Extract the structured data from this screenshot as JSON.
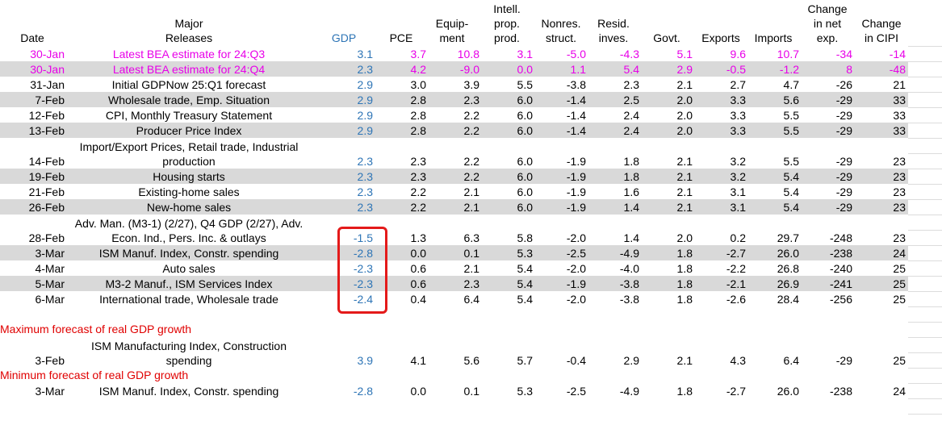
{
  "headers": [
    "Date",
    "Major Releases",
    "GDP",
    "PCE",
    "Equip-\nment",
    "Intell.\nprop.\nprod.",
    "Nonres.\nstruct.",
    "Resid.\ninves.",
    "Govt.",
    "Exports",
    "Imports",
    "Change\nin net\nexp.",
    "Change\nin CIPI"
  ],
  "rows": [
    {
      "date": "30-Jan",
      "release": "Latest BEA estimate for 24:Q3",
      "vals": [
        "3.1",
        "3.7",
        "10.8",
        "3.1",
        "-5.0",
        "-4.3",
        "5.1",
        "9.6",
        "10.7",
        "-34",
        "-14"
      ],
      "style": "pink",
      "shade": false
    },
    {
      "date": "30-Jan",
      "release": "Latest BEA estimate for 24:Q4",
      "vals": [
        "2.3",
        "4.2",
        "-9.0",
        "0.0",
        "1.1",
        "5.4",
        "2.9",
        "-0.5",
        "-1.2",
        "8",
        "-48"
      ],
      "style": "pink",
      "shade": true
    },
    {
      "date": "31-Jan",
      "release": "Initial GDPNow 25:Q1 forecast",
      "vals": [
        "2.9",
        "3.0",
        "3.9",
        "5.5",
        "-3.8",
        "2.3",
        "2.1",
        "2.7",
        "4.7",
        "-26",
        "21"
      ],
      "style": "",
      "shade": false
    },
    {
      "date": "7-Feb",
      "release": "Wholesale trade, Emp. Situation",
      "vals": [
        "2.9",
        "2.8",
        "2.3",
        "6.0",
        "-1.4",
        "2.5",
        "2.0",
        "3.3",
        "5.6",
        "-29",
        "33"
      ],
      "style": "",
      "shade": true
    },
    {
      "date": "12-Feb",
      "release": "CPI, Monthly Treasury Statement",
      "vals": [
        "2.9",
        "2.8",
        "2.2",
        "6.0",
        "-1.4",
        "2.4",
        "2.0",
        "3.3",
        "5.5",
        "-29",
        "33"
      ],
      "style": "",
      "shade": false
    },
    {
      "date": "13-Feb",
      "release": "Producer Price Index",
      "vals": [
        "2.9",
        "2.8",
        "2.2",
        "6.0",
        "-1.4",
        "2.4",
        "2.0",
        "3.3",
        "5.5",
        "-29",
        "33"
      ],
      "style": "",
      "shade": true
    },
    {
      "date": "14-Feb",
      "release": "Import/Export Prices, Retail trade, Industrial production",
      "vals": [
        "2.3",
        "2.3",
        "2.2",
        "6.0",
        "-1.9",
        "1.8",
        "2.1",
        "3.2",
        "5.5",
        "-29",
        "23"
      ],
      "style": "",
      "shade": false,
      "tall": true
    },
    {
      "date": "19-Feb",
      "release": "Housing starts",
      "vals": [
        "2.3",
        "2.3",
        "2.2",
        "6.0",
        "-1.9",
        "1.8",
        "2.1",
        "3.2",
        "5.4",
        "-29",
        "23"
      ],
      "style": "",
      "shade": true
    },
    {
      "date": "21-Feb",
      "release": "Existing-home sales",
      "vals": [
        "2.3",
        "2.2",
        "2.1",
        "6.0",
        "-1.9",
        "1.6",
        "2.1",
        "3.1",
        "5.4",
        "-29",
        "23"
      ],
      "style": "",
      "shade": false
    },
    {
      "date": "26-Feb",
      "release": "New-home sales",
      "vals": [
        "2.3",
        "2.2",
        "2.1",
        "6.0",
        "-1.9",
        "1.4",
        "2.1",
        "3.1",
        "5.4",
        "-29",
        "23"
      ],
      "style": "",
      "shade": true
    },
    {
      "date": "28-Feb",
      "release": "Adv. Man. (M3-1) (2/27), Q4 GDP (2/27), Adv. Econ. Ind., Pers. Inc. & outlays",
      "vals": [
        "-1.5",
        "1.3",
        "6.3",
        "5.8",
        "-2.0",
        "1.4",
        "2.0",
        "0.2",
        "29.7",
        "-248",
        "23"
      ],
      "style": "",
      "shade": false,
      "tall": true
    },
    {
      "date": "3-Mar",
      "release": "ISM Manuf. Index, Constr. spending",
      "vals": [
        "-2.8",
        "0.0",
        "0.1",
        "5.3",
        "-2.5",
        "-4.9",
        "1.8",
        "-2.7",
        "26.0",
        "-238",
        "24"
      ],
      "style": "",
      "shade": true
    },
    {
      "date": "4-Mar",
      "release": "Auto sales",
      "vals": [
        "-2.3",
        "0.6",
        "2.1",
        "5.4",
        "-2.0",
        "-4.0",
        "1.8",
        "-2.2",
        "26.8",
        "-240",
        "25"
      ],
      "style": "",
      "shade": false
    },
    {
      "date": "5-Mar",
      "release": "M3-2 Manuf., ISM Services Index",
      "vals": [
        "-2.3",
        "0.6",
        "2.3",
        "5.4",
        "-1.9",
        "-3.8",
        "1.8",
        "-2.1",
        "26.9",
        "-241",
        "25"
      ],
      "style": "",
      "shade": true
    },
    {
      "date": "6-Mar",
      "release": "International trade, Wholesale trade",
      "vals": [
        "-2.4",
        "0.4",
        "6.4",
        "5.4",
        "-2.0",
        "-3.8",
        "1.8",
        "-2.6",
        "28.4",
        "-256",
        "25"
      ],
      "style": "",
      "shade": false
    }
  ],
  "max_label": "Maximum forecast of real GDP growth",
  "max_row": {
    "date": "3-Feb",
    "release": "ISM Manufacturing Index, Construction spending",
    "vals": [
      "3.9",
      "4.1",
      "5.6",
      "5.7",
      "-0.4",
      "2.9",
      "2.1",
      "4.3",
      "6.4",
      "-29",
      "25"
    ]
  },
  "min_label": "Minimum forecast of real GDP growth",
  "min_row": {
    "date": "3-Mar",
    "release": "ISM Manuf. Index, Constr. spending",
    "vals": [
      "-2.8",
      "0.0",
      "0.1",
      "5.3",
      "-2.5",
      "-4.9",
      "1.8",
      "-2.7",
      "26.0",
      "-238",
      "24"
    ]
  },
  "colors": {
    "gdp": "#2e75b6",
    "pink": "#e800e8",
    "red": "#e00000",
    "shade": "#d9d9d9",
    "box": "#e41a1a"
  }
}
